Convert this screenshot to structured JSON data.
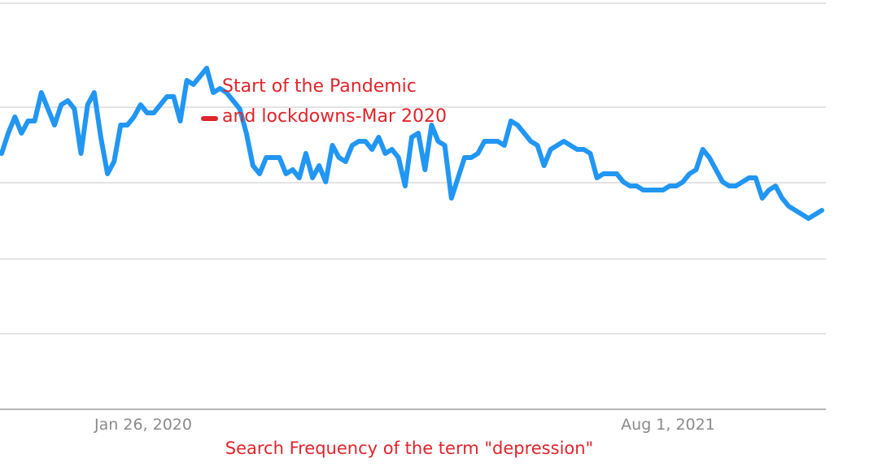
{
  "chart_data": {
    "type": "line",
    "xlabel": "",
    "ylabel": "",
    "caption": "Search Frequency of the term \"depression\"",
    "x_ticks": [
      "Jan 26, 2020",
      "Aug 1, 2021"
    ],
    "y_gridlines": 5,
    "grid": true,
    "annotation": {
      "lines": [
        "Start of the Pandemic",
        "and lockdowns-Mar 2020"
      ],
      "color": "#e0242b"
    },
    "series": [
      {
        "color": "#2196f3",
        "values": [
          63,
          68,
          72,
          68,
          71,
          71,
          78,
          74,
          70,
          75,
          76,
          74,
          63,
          75,
          78,
          67,
          58,
          61,
          70,
          70,
          72,
          75,
          73,
          73,
          75,
          77,
          77,
          71,
          81,
          80,
          82,
          84,
          78,
          79,
          78,
          76,
          74,
          68,
          60,
          58,
          62,
          62,
          62,
          58,
          59,
          57,
          63,
          57,
          60,
          56,
          65,
          62,
          61,
          65,
          66,
          66,
          64,
          67,
          63,
          64,
          62,
          55,
          67,
          68,
          59,
          70,
          66,
          65,
          52,
          57,
          62,
          62,
          63,
          66,
          66,
          66,
          65,
          71,
          70,
          68,
          66,
          65,
          60,
          64,
          65,
          66,
          65,
          64,
          64,
          63,
          57,
          58,
          58,
          58,
          56,
          55,
          55,
          54,
          54,
          54,
          54,
          55,
          55,
          56,
          58,
          59,
          64,
          62,
          59,
          56,
          55,
          55,
          56,
          57,
          57,
          52,
          54,
          55,
          52,
          50,
          49,
          48,
          47,
          48,
          49
        ],
        "emphasis": [
          0,
          0,
          0,
          0,
          0,
          0,
          0,
          0,
          0,
          0,
          0,
          0,
          0,
          0,
          0,
          0,
          0,
          0,
          0,
          0,
          0,
          0,
          0,
          0,
          0,
          0,
          0,
          0,
          0,
          0,
          0,
          0,
          0,
          0,
          0,
          0,
          0,
          0,
          0,
          0,
          0,
          0,
          0,
          0,
          0,
          0,
          0,
          0,
          0,
          0,
          0,
          0,
          0,
          0,
          0,
          0,
          0,
          0,
          0,
          0,
          0,
          0,
          0,
          0,
          0,
          0,
          0,
          0,
          0,
          0,
          0,
          0,
          0,
          0,
          0,
          0,
          0,
          0,
          0,
          0,
          0,
          0,
          0,
          0,
          0,
          0,
          0,
          0,
          0,
          0,
          0,
          0,
          0,
          0,
          0,
          0,
          0,
          0,
          0,
          0,
          0,
          0,
          0,
          0,
          0,
          0,
          0,
          0,
          0,
          0,
          0,
          0,
          0,
          0,
          0,
          0,
          0,
          0,
          0,
          0,
          0
        ]
      }
    ]
  }
}
